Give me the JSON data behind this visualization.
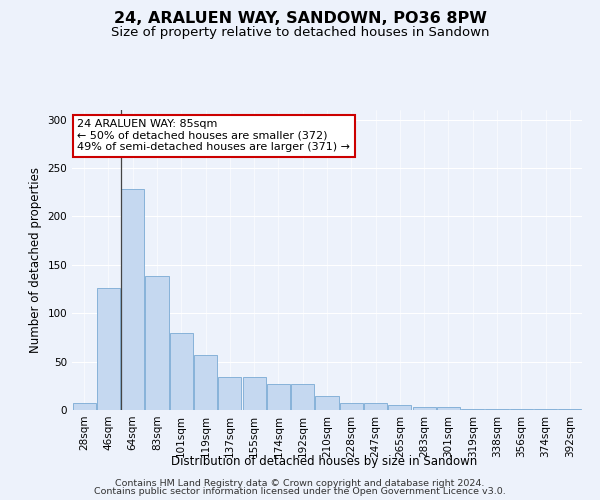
{
  "title": "24, ARALUEN WAY, SANDOWN, PO36 8PW",
  "subtitle": "Size of property relative to detached houses in Sandown",
  "xlabel": "Distribution of detached houses by size in Sandown",
  "ylabel": "Number of detached properties",
  "categories": [
    "28sqm",
    "46sqm",
    "64sqm",
    "83sqm",
    "101sqm",
    "119sqm",
    "137sqm",
    "155sqm",
    "174sqm",
    "192sqm",
    "210sqm",
    "228sqm",
    "247sqm",
    "265sqm",
    "283sqm",
    "301sqm",
    "319sqm",
    "338sqm",
    "356sqm",
    "374sqm",
    "392sqm"
  ],
  "values": [
    7,
    126,
    228,
    138,
    80,
    57,
    34,
    34,
    27,
    27,
    14,
    7,
    7,
    5,
    3,
    3,
    1,
    1,
    1,
    1,
    1
  ],
  "bar_color": "#c5d8f0",
  "bar_edge_color": "#7aaad4",
  "ylim": [
    0,
    310
  ],
  "yticks": [
    0,
    50,
    100,
    150,
    200,
    250,
    300
  ],
  "annotation_line1": "24 ARALUEN WAY: 85sqm",
  "annotation_line2": "← 50% of detached houses are smaller (372)",
  "annotation_line3": "49% of semi-detached houses are larger (371) →",
  "annotation_box_color": "#ffffff",
  "annotation_box_edgecolor": "#cc0000",
  "property_line_x": 1.5,
  "footer_line1": "Contains HM Land Registry data © Crown copyright and database right 2024.",
  "footer_line2": "Contains public sector information licensed under the Open Government Licence v3.0.",
  "bg_color": "#edf2fb",
  "plot_bg_color": "#edf2fb",
  "grid_color": "#ffffff",
  "title_fontsize": 11.5,
  "subtitle_fontsize": 9.5,
  "axis_label_fontsize": 8.5,
  "tick_fontsize": 7.5,
  "annotation_fontsize": 8,
  "footer_fontsize": 6.8
}
